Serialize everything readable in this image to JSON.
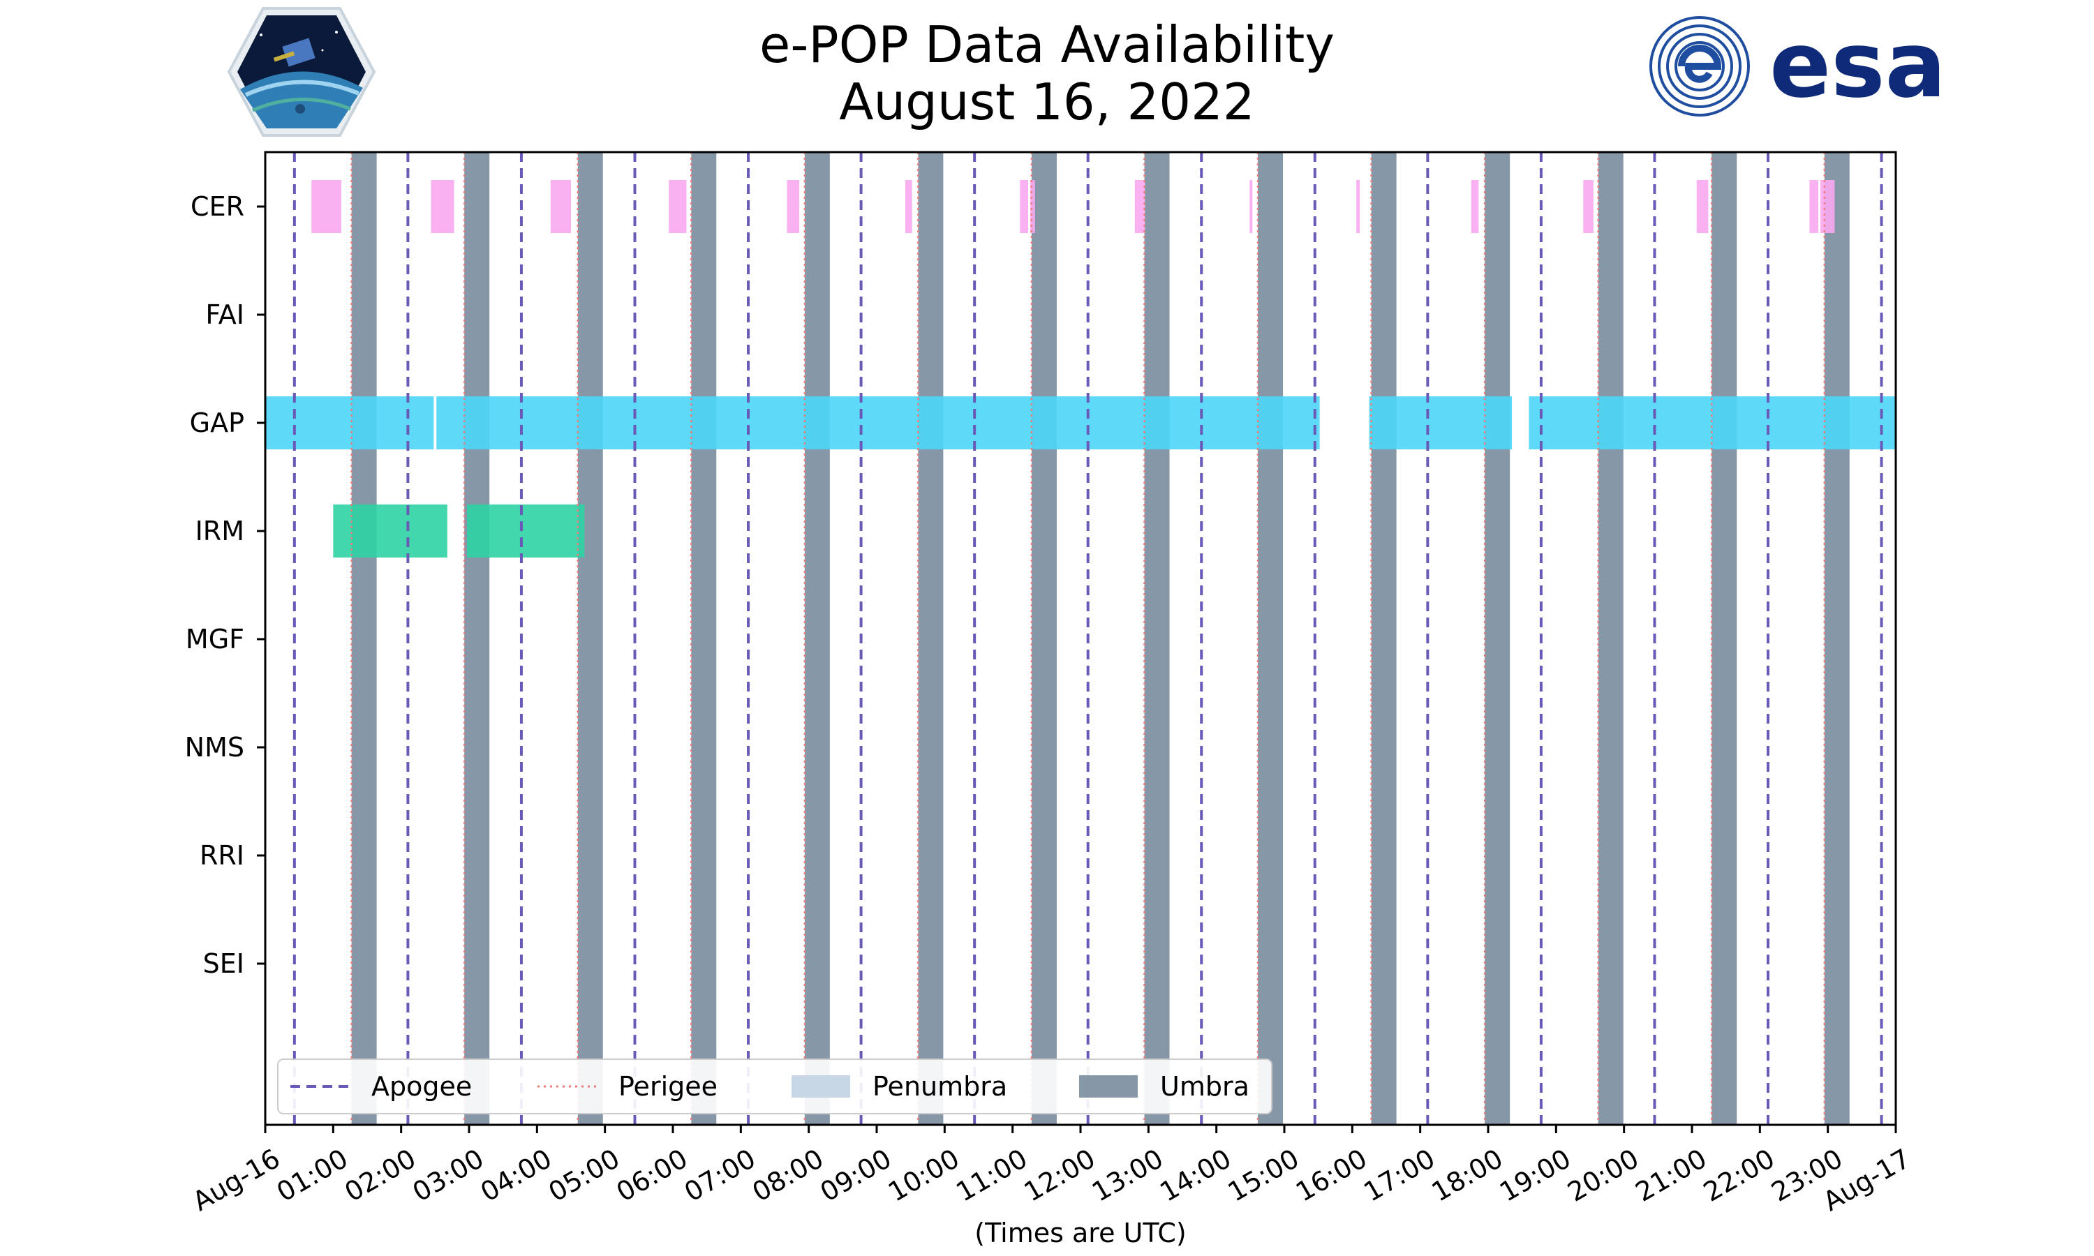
{
  "chart_data": {
    "type": "timeline",
    "title": "e-POP Data Availability",
    "subtitle": "August 16, 2022",
    "xlabel": "(Times are UTC)",
    "xlim_hours": [
      0,
      24
    ],
    "x_ticks": [
      {
        "hour": 0,
        "label": "Aug-16"
      },
      {
        "hour": 1,
        "label": "01:00"
      },
      {
        "hour": 2,
        "label": "02:00"
      },
      {
        "hour": 3,
        "label": "03:00"
      },
      {
        "hour": 4,
        "label": "04:00"
      },
      {
        "hour": 5,
        "label": "05:00"
      },
      {
        "hour": 6,
        "label": "06:00"
      },
      {
        "hour": 7,
        "label": "07:00"
      },
      {
        "hour": 8,
        "label": "08:00"
      },
      {
        "hour": 9,
        "label": "09:00"
      },
      {
        "hour": 10,
        "label": "10:00"
      },
      {
        "hour": 11,
        "label": "11:00"
      },
      {
        "hour": 12,
        "label": "12:00"
      },
      {
        "hour": 13,
        "label": "13:00"
      },
      {
        "hour": 14,
        "label": "14:00"
      },
      {
        "hour": 15,
        "label": "15:00"
      },
      {
        "hour": 16,
        "label": "16:00"
      },
      {
        "hour": 17,
        "label": "17:00"
      },
      {
        "hour": 18,
        "label": "18:00"
      },
      {
        "hour": 19,
        "label": "19:00"
      },
      {
        "hour": 20,
        "label": "20:00"
      },
      {
        "hour": 21,
        "label": "21:00"
      },
      {
        "hour": 22,
        "label": "22:00"
      },
      {
        "hour": 23,
        "label": "23:00"
      },
      {
        "hour": 24,
        "label": "Aug-17"
      }
    ],
    "instruments": [
      "CER",
      "FAI",
      "GAP",
      "IRM",
      "MGF",
      "NMS",
      "RRI",
      "SEI"
    ],
    "colors": {
      "CER": "#f9a8f0",
      "GAP": "#4dd6f7",
      "IRM": "#2ed3a4",
      "apogee": "#6a5ab8",
      "perigee": "#ee7b7b",
      "penumbra": "#c8d7e6",
      "umbra": "#8697a8"
    },
    "apogee_hours": [
      0.43,
      2.1,
      3.77,
      5.44,
      7.11,
      8.77,
      10.44,
      12.11,
      13.78,
      15.45,
      17.11,
      18.78,
      20.45,
      22.12,
      23.79
    ],
    "perigee_hours": [
      1.27,
      2.93,
      4.6,
      6.27,
      7.94,
      9.61,
      11.28,
      12.94,
      14.61,
      16.28,
      17.95,
      19.62,
      21.29,
      22.95
    ],
    "umbra_intervals": [
      [
        1.27,
        1.64
      ],
      [
        2.93,
        3.3
      ],
      [
        4.6,
        4.97
      ],
      [
        6.27,
        6.64
      ],
      [
        7.94,
        8.31
      ],
      [
        9.61,
        9.98
      ],
      [
        11.28,
        11.65
      ],
      [
        12.94,
        13.31
      ],
      [
        14.61,
        14.98
      ],
      [
        16.28,
        16.65
      ],
      [
        17.95,
        18.32
      ],
      [
        19.62,
        19.99
      ],
      [
        21.29,
        21.66
      ],
      [
        22.95,
        23.32
      ]
    ],
    "data_intervals": {
      "CER": [
        [
          0.68,
          1.12
        ],
        [
          2.44,
          2.78
        ],
        [
          4.2,
          4.5
        ],
        [
          5.94,
          6.2
        ],
        [
          7.68,
          7.86
        ],
        [
          9.42,
          9.52
        ],
        [
          11.11,
          11.23
        ],
        [
          11.26,
          11.33
        ],
        [
          12.8,
          12.95
        ],
        [
          14.49,
          14.53
        ],
        [
          16.06,
          16.11
        ],
        [
          17.75,
          17.86
        ],
        [
          19.4,
          19.55
        ],
        [
          21.07,
          21.24
        ],
        [
          22.73,
          22.86
        ],
        [
          22.89,
          23.1
        ]
      ],
      "FAI": [],
      "GAP": [
        [
          0.0,
          2.48
        ],
        [
          2.52,
          15.52
        ],
        [
          16.25,
          18.35
        ],
        [
          18.6,
          24.0
        ]
      ],
      "IRM": [
        [
          1.0,
          2.68
        ],
        [
          2.97,
          4.7
        ]
      ],
      "MGF": [],
      "NMS": [],
      "RRI": [],
      "SEI": []
    },
    "legend": {
      "position": "lower-left",
      "entries": [
        {
          "label": "Apogee",
          "style": "apogee"
        },
        {
          "label": "Perigee",
          "style": "perigee"
        },
        {
          "label": "Penumbra",
          "style": "penumbra"
        },
        {
          "label": "Umbra",
          "style": "umbra"
        }
      ]
    }
  }
}
